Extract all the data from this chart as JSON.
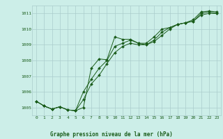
{
  "title": "Graphe pression niveau de la mer (hPa)",
  "background_color": "#cceee8",
  "grid_color": "#aacccc",
  "line_color": "#1a5c1a",
  "xlim": [
    -0.5,
    23.5
  ],
  "ylim": [
    1004.5,
    1011.5
  ],
  "xticks": [
    0,
    1,
    2,
    3,
    4,
    5,
    6,
    7,
    8,
    9,
    10,
    11,
    12,
    13,
    14,
    15,
    16,
    17,
    18,
    19,
    20,
    21,
    22,
    23
  ],
  "yticks": [
    1005,
    1006,
    1007,
    1008,
    1009,
    1010,
    1011
  ],
  "line1": [
    1005.4,
    1005.1,
    1004.9,
    1005.05,
    1004.85,
    1004.8,
    1005.0,
    1007.5,
    1008.1,
    1008.05,
    1009.5,
    1009.35,
    1009.35,
    1009.1,
    1009.1,
    1009.5,
    1010.0,
    1010.1,
    1010.3,
    1010.4,
    1010.6,
    1011.1,
    1011.15,
    1011.1
  ],
  "line2": [
    1005.4,
    1005.1,
    1004.9,
    1005.05,
    1004.85,
    1004.8,
    1006.0,
    1006.8,
    1007.5,
    1008.0,
    1008.9,
    1009.1,
    1009.3,
    1009.1,
    1009.0,
    1009.3,
    1009.8,
    1010.1,
    1010.3,
    1010.4,
    1010.5,
    1011.0,
    1011.1,
    1011.0
  ],
  "line3": [
    1005.4,
    1005.1,
    1004.9,
    1005.05,
    1004.85,
    1004.8,
    1005.5,
    1006.5,
    1007.05,
    1007.8,
    1008.5,
    1008.9,
    1009.1,
    1009.0,
    1009.0,
    1009.2,
    1009.6,
    1010.0,
    1010.3,
    1010.4,
    1010.5,
    1010.9,
    1011.0,
    1011.0
  ],
  "tick_fontsize": 4.5,
  "label_fontsize": 5.5
}
